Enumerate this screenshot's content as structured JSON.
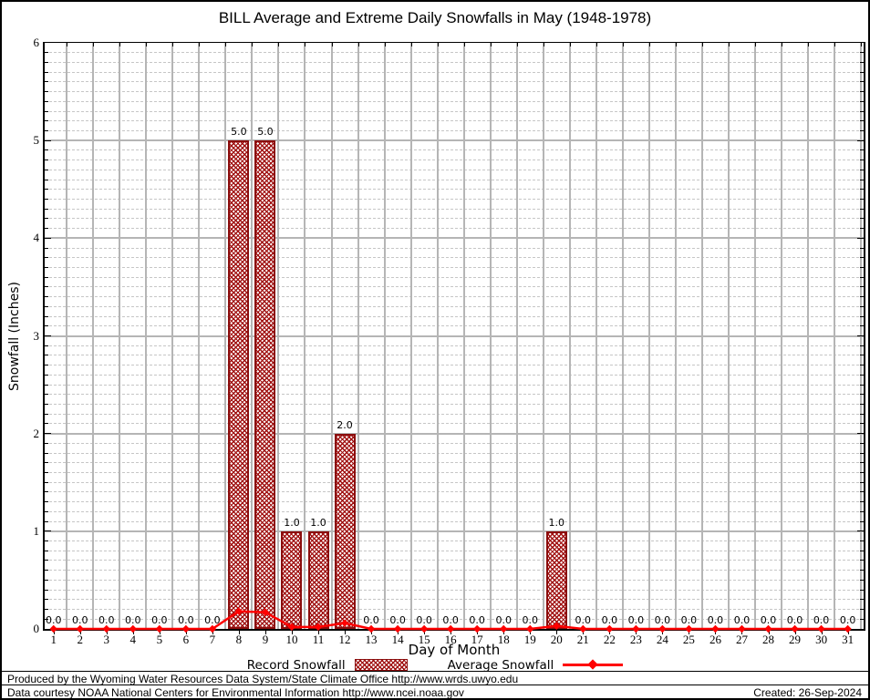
{
  "title": "BILL Average and Extreme Daily Snowfalls in May (1948-1978)",
  "y_axis": {
    "label": "Snowfall (Inches)"
  },
  "x_axis": {
    "label": "Day of Month"
  },
  "legend": {
    "record": "Record Snowfall",
    "average": "Average Snowfall"
  },
  "footer": {
    "line1": "Produced by the Wyoming Water Resources Data System/State Climate Office http://www.wrds.uwyo.edu",
    "line2": "Data courtesy NOAA National Centers for Environmental Information http://www.ncei.noaa.gov",
    "created": "Created: 26-Sep-2024"
  },
  "colors": {
    "bar_border": "#8b0d0d",
    "bar_hatch": "#a01010",
    "line_red": "#ff0000",
    "grid_major": "#b5b5b5",
    "grid_minor": "#c6c6c6",
    "text": "#000000"
  },
  "chart_data": {
    "type": "bar+line",
    "title": "BILL Average and Extreme Daily Snowfalls in May (1948-1978)",
    "xlabel": "Day of Month",
    "ylabel": "Snowfall (Inches)",
    "ylim": [
      0,
      6
    ],
    "y_major_step": 1,
    "y_minor_step": 0.1,
    "grid": true,
    "legend_position": "bottom",
    "categories": [
      1,
      2,
      3,
      4,
      5,
      6,
      7,
      8,
      9,
      10,
      11,
      12,
      13,
      14,
      15,
      16,
      17,
      18,
      19,
      20,
      21,
      22,
      23,
      24,
      25,
      26,
      27,
      28,
      29,
      30,
      31
    ],
    "series": [
      {
        "name": "Record Snowfall",
        "type": "bar",
        "values": [
          0,
          0,
          0,
          0,
          0,
          0,
          0,
          5,
          5,
          1,
          1,
          2,
          0,
          0,
          0,
          0,
          0,
          0,
          0,
          1,
          0,
          0,
          0,
          0,
          0,
          0,
          0,
          0,
          0,
          0,
          0
        ],
        "labels": [
          "0.0",
          "0.0",
          "0.0",
          "0.0",
          "0.0",
          "0.0",
          "0.0",
          "5.0",
          "5.0",
          "1.0",
          "1.0",
          "2.0",
          "0.0",
          "0.0",
          "0.0",
          "0.0",
          "0.0",
          "0.0",
          "0.0",
          "1.0",
          "0.0",
          "0.0",
          "0.0",
          "0.0",
          "0.0",
          "0.0",
          "0.0",
          "0.0",
          "0.0",
          "0.0",
          "0.0"
        ]
      },
      {
        "name": "Average Snowfall",
        "type": "line",
        "values": [
          0,
          0,
          0,
          0,
          0,
          0,
          0,
          0.18,
          0.17,
          0.02,
          0.02,
          0.06,
          0,
          0,
          0,
          0,
          0,
          0,
          0,
          0.03,
          0,
          0,
          0,
          0,
          0,
          0,
          0,
          0,
          0,
          0,
          0
        ]
      }
    ]
  }
}
